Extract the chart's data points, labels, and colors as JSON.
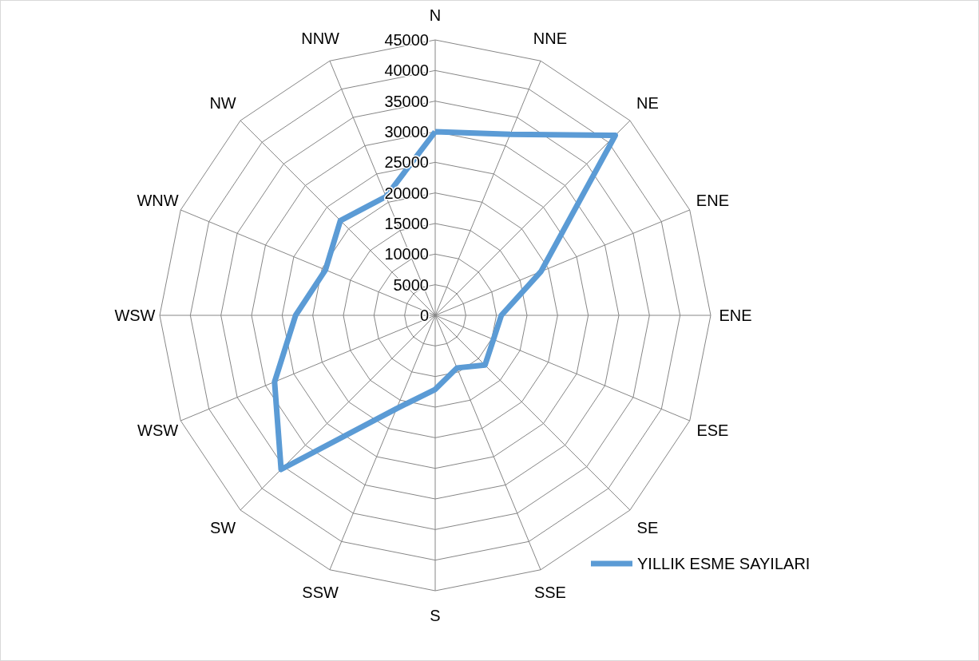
{
  "chart_data": {
    "type": "radar",
    "categories": [
      "N",
      "NNE",
      "NE",
      "ENE",
      "ENE",
      "ESE",
      "SE",
      "SSE",
      "S",
      "SSW",
      "SW",
      "WSW",
      "WSW",
      "WNW",
      "NW",
      "NNW"
    ],
    "series": [
      {
        "name": "YILLIK ESME SAYILARI",
        "color": "#5b9bd5",
        "values": [
          30000,
          32000,
          41600,
          18700,
          10800,
          10300,
          11500,
          9300,
          12100,
          16500,
          35600,
          28400,
          22800,
          19400,
          21900,
          21000
        ]
      }
    ],
    "ylim": [
      0,
      45000
    ],
    "yticks": [
      0,
      5000,
      10000,
      15000,
      20000,
      25000,
      30000,
      35000,
      40000,
      45000
    ],
    "grid": true,
    "legend": "bottom right",
    "marker": "none",
    "line_style": "solid"
  }
}
